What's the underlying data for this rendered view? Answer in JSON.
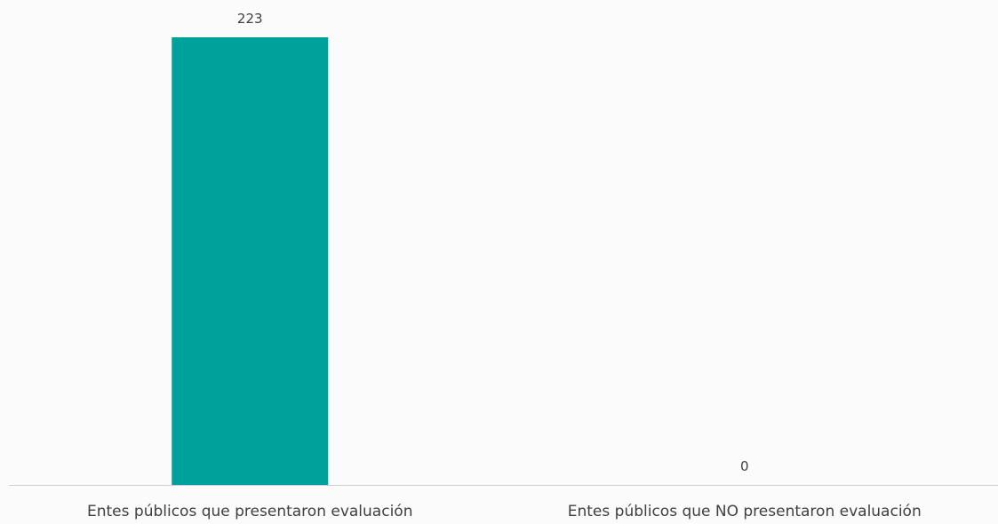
{
  "chart_data": {
    "type": "bar",
    "categories": [
      "Entes públicos que presentaron evaluación",
      "Entes públicos que NO presentaron evaluación"
    ],
    "values": [
      223,
      0
    ],
    "data_labels": [
      "223",
      "0"
    ],
    "title": "",
    "xlabel": "",
    "ylabel": "",
    "ylim": [
      0,
      223
    ],
    "grid": false,
    "legend": "none",
    "colors": {
      "bar": "#00a19a",
      "axis": "#d0d0d0",
      "text": "#404040",
      "background": "#fbfbfb"
    }
  }
}
